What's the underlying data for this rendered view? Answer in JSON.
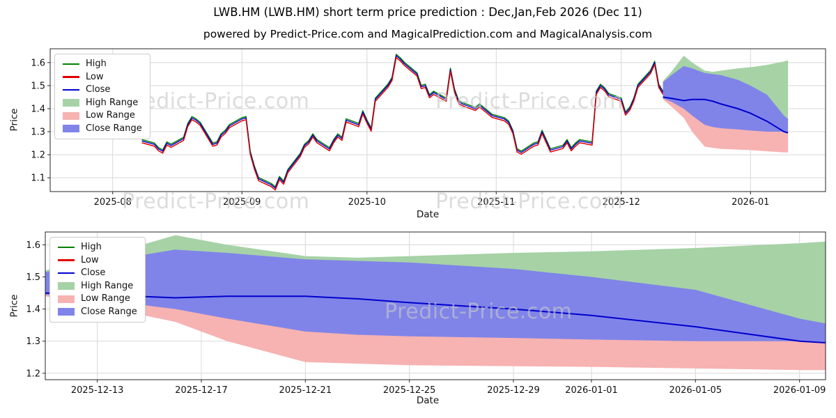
{
  "header": {
    "title": "LWB.HM (LWB.HM) short term price prediction : Dec,Jan,Feb 2026 (Dec 11)",
    "subtitle": "powered by Predict-Price.com and MagicalPrediction.com and MagicalAnalysis.com"
  },
  "watermark": {
    "text": "Predict-Price.com"
  },
  "axes": {
    "price_label": "Price",
    "date_label": "Date"
  },
  "colors": {
    "high": "#008000",
    "low": "#e00000",
    "close": "#0000cd",
    "high_range": "#a6d2a6",
    "low_range": "#f7b2b2",
    "close_range": "#8084e8",
    "grid": "#d8d8d8",
    "spine": "#262626",
    "watermark": "#c8c8c8"
  },
  "legend": {
    "items": [
      {
        "key": "high",
        "label": "High",
        "swatch": "line",
        "color_key": "high"
      },
      {
        "key": "low",
        "label": "Low",
        "swatch": "line",
        "color_key": "low"
      },
      {
        "key": "close",
        "label": "Close",
        "swatch": "line",
        "color_key": "close"
      },
      {
        "key": "high-range",
        "label": "High Range",
        "swatch": "patch",
        "color_key": "high_range"
      },
      {
        "key": "low-range",
        "label": "Low Range",
        "swatch": "patch",
        "color_key": "low_range"
      },
      {
        "key": "close-range",
        "label": "Close Range",
        "swatch": "patch",
        "color_key": "close_range"
      }
    ]
  },
  "prediction": {
    "dates": [
      "2025-12-11",
      "2025-12-13",
      "2025-12-16",
      "2025-12-18",
      "2025-12-21",
      "2025-12-23",
      "2025-12-25",
      "2025-12-29",
      "2026-01-01",
      "2026-01-05",
      "2026-01-09",
      "2026-01-10"
    ],
    "high_range_upper": [
      1.52,
      1.56,
      1.63,
      1.6,
      1.565,
      1.56,
      1.565,
      1.575,
      1.58,
      1.59,
      1.605,
      1.61
    ],
    "high_range_lower": [
      1.46,
      1.44,
      1.42,
      1.4,
      1.38,
      1.37,
      1.36,
      1.345,
      1.335,
      1.325,
      1.315,
      1.31
    ],
    "close_range_upper": [
      1.515,
      1.545,
      1.585,
      1.575,
      1.555,
      1.55,
      1.545,
      1.525,
      1.5,
      1.46,
      1.37,
      1.355
    ],
    "close_range_lower": [
      1.445,
      1.43,
      1.4,
      1.37,
      1.33,
      1.32,
      1.315,
      1.31,
      1.305,
      1.3,
      1.3,
      1.295
    ],
    "low_range_upper": [
      1.45,
      1.435,
      1.41,
      1.385,
      1.34,
      1.33,
      1.32,
      1.315,
      1.31,
      1.305,
      1.3,
      1.3
    ],
    "low_range_lower": [
      1.44,
      1.41,
      1.36,
      1.3,
      1.235,
      1.23,
      1.225,
      1.222,
      1.22,
      1.215,
      1.21,
      1.21
    ],
    "close": [
      1.45,
      1.445,
      1.435,
      1.44,
      1.44,
      1.432,
      1.42,
      1.4,
      1.38,
      1.345,
      1.3,
      1.295
    ]
  },
  "chart_data": [
    {
      "name": "history-and-forecast-chart",
      "type": "line",
      "ylabel": "Price",
      "xlabel": "Date",
      "ylim": [
        1.04,
        1.66
      ],
      "yticks": [
        1.1,
        1.2,
        1.3,
        1.4,
        1.5,
        1.6
      ],
      "xdomain": [
        "2025-07-17",
        "2026-01-19"
      ],
      "xticks": [
        {
          "date": "2025-08-01",
          "label": "2025-08"
        },
        {
          "date": "2025-09-01",
          "label": "2025-09"
        },
        {
          "date": "2025-10-01",
          "label": "2025-10"
        },
        {
          "date": "2025-11-01",
          "label": "2025-11"
        },
        {
          "date": "2025-12-01",
          "label": "2025-12"
        },
        {
          "date": "2026-01-01",
          "label": "2026-01"
        }
      ],
      "grid": true,
      "legend_position": "upper left",
      "includes_prediction_bands": true,
      "history": {
        "dates": [
          "2025-08-08",
          "2025-08-11",
          "2025-08-12",
          "2025-08-13",
          "2025-08-14",
          "2025-08-15",
          "2025-08-18",
          "2025-08-19",
          "2025-08-20",
          "2025-08-21",
          "2025-08-22",
          "2025-08-25",
          "2025-08-26",
          "2025-08-27",
          "2025-08-28",
          "2025-08-29",
          "2025-09-01",
          "2025-09-02",
          "2025-09-03",
          "2025-09-04",
          "2025-09-05",
          "2025-09-08",
          "2025-09-09",
          "2025-09-10",
          "2025-09-11",
          "2025-09-12",
          "2025-09-15",
          "2025-09-16",
          "2025-09-17",
          "2025-09-18",
          "2025-09-19",
          "2025-09-22",
          "2025-09-23",
          "2025-09-24",
          "2025-09-25",
          "2025-09-26",
          "2025-09-29",
          "2025-09-30",
          "2025-10-01",
          "2025-10-02",
          "2025-10-03",
          "2025-10-06",
          "2025-10-07",
          "2025-10-08",
          "2025-10-09",
          "2025-10-10",
          "2025-10-13",
          "2025-10-14",
          "2025-10-15",
          "2025-10-16",
          "2025-10-17",
          "2025-10-20",
          "2025-10-21",
          "2025-10-22",
          "2025-10-23",
          "2025-10-24",
          "2025-10-27",
          "2025-10-28",
          "2025-10-29",
          "2025-10-30",
          "2025-10-31",
          "2025-11-03",
          "2025-11-04",
          "2025-11-05",
          "2025-11-06",
          "2025-11-07",
          "2025-11-10",
          "2025-11-11",
          "2025-11-12",
          "2025-11-13",
          "2025-11-14",
          "2025-11-17",
          "2025-11-18",
          "2025-11-19",
          "2025-11-20",
          "2025-11-21",
          "2025-11-24",
          "2025-11-25",
          "2025-11-26",
          "2025-11-27",
          "2025-11-28",
          "2025-12-01",
          "2025-12-02",
          "2025-12-03",
          "2025-12-04",
          "2025-12-05",
          "2025-12-08",
          "2025-12-09",
          "2025-12-10",
          "2025-12-11"
        ],
        "close": [
          1.26,
          1.245,
          1.225,
          1.215,
          1.25,
          1.24,
          1.27,
          1.33,
          1.36,
          1.35,
          1.335,
          1.245,
          1.25,
          1.285,
          1.3,
          1.325,
          1.355,
          1.36,
          1.21,
          1.145,
          1.095,
          1.07,
          1.055,
          1.1,
          1.08,
          1.13,
          1.2,
          1.24,
          1.255,
          1.285,
          1.26,
          1.225,
          1.26,
          1.285,
          1.27,
          1.35,
          1.33,
          1.385,
          1.345,
          1.31,
          1.44,
          1.5,
          1.53,
          1.63,
          1.615,
          1.595,
          1.55,
          1.495,
          1.5,
          1.455,
          1.47,
          1.44,
          1.57,
          1.48,
          1.43,
          1.42,
          1.4,
          1.415,
          1.4,
          1.385,
          1.37,
          1.355,
          1.34,
          1.3,
          1.22,
          1.21,
          1.245,
          1.25,
          1.3,
          1.26,
          1.22,
          1.235,
          1.26,
          1.225,
          1.245,
          1.26,
          1.25,
          1.47,
          1.5,
          1.485,
          1.46,
          1.44,
          1.38,
          1.4,
          1.44,
          1.5,
          1.56,
          1.6,
          1.5,
          1.47
        ],
        "high_offset": 0.006,
        "low_offset": -0.008
      }
    },
    {
      "name": "forecast-detail-chart",
      "type": "area",
      "ylabel": "Price",
      "xlabel": "Date",
      "ylim": [
        1.18,
        1.64
      ],
      "yticks": [
        1.2,
        1.3,
        1.4,
        1.5,
        1.6
      ],
      "xdomain": [
        "2025-12-11",
        "2026-01-10"
      ],
      "xticks": [
        {
          "date": "2025-12-13",
          "label": "2025-12-13"
        },
        {
          "date": "2025-12-17",
          "label": "2025-12-17"
        },
        {
          "date": "2025-12-21",
          "label": "2025-12-21"
        },
        {
          "date": "2025-12-25",
          "label": "2025-12-25"
        },
        {
          "date": "2025-12-29",
          "label": "2025-12-29"
        },
        {
          "date": "2026-01-01",
          "label": "2026-01-01"
        },
        {
          "date": "2026-01-05",
          "label": "2026-01-05"
        },
        {
          "date": "2026-01-09",
          "label": "2026-01-09"
        }
      ],
      "grid": true,
      "legend_position": "upper left",
      "includes_prediction_bands": true
    }
  ]
}
